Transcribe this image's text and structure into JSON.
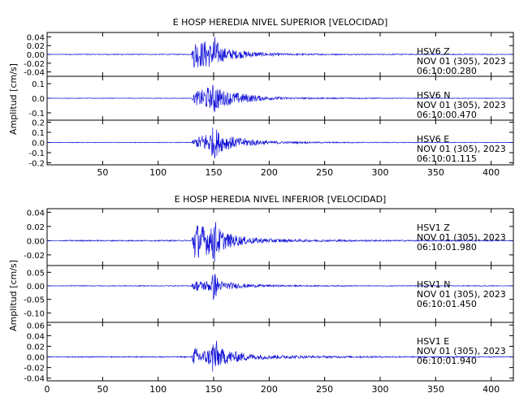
{
  "figure": {
    "background": "#ffffff",
    "trace_color": "#1414d8",
    "frame_color": "#000000"
  },
  "chart_data": [
    {
      "type": "line",
      "title": "E HOSP HEREDIA NIVEL SUPERIOR [VELOCIDAD]",
      "ylabel": "Amplitud [cm/s]",
      "xlim": [
        0,
        420
      ],
      "x_ticks": [
        50,
        100,
        150,
        200,
        250,
        300,
        350,
        400
      ],
      "x_tick_labels": [
        "50",
        "100",
        "150",
        "200",
        "250",
        "300",
        "350",
        "400"
      ],
      "grid": false,
      "panels": [
        {
          "station": "HSV6",
          "channel": "Z",
          "date": "NOV 01 (305), 2023",
          "time": "06:10:00.280",
          "ylim": [
            -0.05,
            0.05
          ],
          "y_ticks": [
            -0.04,
            -0.02,
            0.0,
            0.02,
            0.04
          ],
          "y_tick_labels": [
            "-0.04",
            "-0.02",
            "0.00",
            "0.02",
            "0.04"
          ],
          "series": [
            {
              "x": [
                0,
                20,
                40,
                60,
                80,
                100,
                120,
                130,
                133,
                135,
                140,
                145,
                148,
                150,
                155,
                160,
                170,
                180,
                190,
                200,
                220,
                250,
                300,
                350,
                400,
                420
              ],
              "y": [
                0,
                0.001,
                0.001,
                0.001,
                0.001,
                0.001,
                0.001,
                0.001,
                0.04,
                0.03,
                0.03,
                0.035,
                0.02,
                0.05,
                0.02,
                0.015,
                0.01,
                0.008,
                0.005,
                0.004,
                0.002,
                0.0015,
                0.001,
                0.001,
                0.001,
                0
              ]
            }
          ]
        },
        {
          "station": "HSV6",
          "channel": "N",
          "date": "NOV 01 (305), 2023",
          "time": "06:10:00.470",
          "ylim": [
            -0.15,
            0.15
          ],
          "y_ticks": [
            -0.1,
            0.0,
            0.1
          ],
          "y_tick_labels": [
            "-0.1",
            "0.0",
            "0.1"
          ],
          "series": [
            {
              "x": [
                0,
                20,
                40,
                60,
                80,
                100,
                120,
                130,
                133,
                135,
                140,
                145,
                148,
                150,
                155,
                160,
                170,
                180,
                190,
                200,
                220,
                250,
                300,
                350,
                400,
                420
              ],
              "y": [
                0,
                0.002,
                0.002,
                0.002,
                0.002,
                0.002,
                0.002,
                0.002,
                0.04,
                0.05,
                0.06,
                0.08,
                0.06,
                0.12,
                0.07,
                0.05,
                0.04,
                0.03,
                0.02,
                0.012,
                0.007,
                0.005,
                0.003,
                0.002,
                0.002,
                0
              ]
            }
          ]
        },
        {
          "station": "HSV6",
          "channel": "E",
          "date": "NOV 01 (305), 2023",
          "time": "06:10:01.115",
          "ylim": [
            -0.22,
            0.22
          ],
          "y_ticks": [
            -0.2,
            -0.1,
            0.0,
            0.1,
            0.2
          ],
          "y_tick_labels": [
            "-0.2",
            "-0.1",
            "0.0",
            "0.1",
            "0.2"
          ],
          "series": [
            {
              "x": [
                0,
                20,
                40,
                60,
                80,
                100,
                120,
                130,
                133,
                135,
                140,
                145,
                148,
                150,
                155,
                160,
                170,
                180,
                190,
                200,
                220,
                250,
                300,
                350,
                400,
                420
              ],
              "y": [
                0,
                0.003,
                0.003,
                0.003,
                0.003,
                0.003,
                0.003,
                0.003,
                0.04,
                0.05,
                0.08,
                0.1,
                0.12,
                0.18,
                0.1,
                0.08,
                0.05,
                0.04,
                0.025,
                0.015,
                0.01,
                0.006,
                0.004,
                0.003,
                0.003,
                0
              ]
            }
          ]
        }
      ]
    },
    {
      "type": "line",
      "title": "E HOSP HEREDIA NIVEL INFERIOR [VELOCIDAD]",
      "ylabel": "Amplitud [cm/s]",
      "xlim": [
        0,
        420
      ],
      "x_ticks": [
        0,
        50,
        100,
        150,
        200,
        250,
        300,
        350,
        400
      ],
      "x_tick_labels": [
        "0",
        "50",
        "100",
        "150",
        "200",
        "250",
        "300",
        "350",
        "400"
      ],
      "grid": false,
      "panels": [
        {
          "station": "HSV1",
          "channel": "Z",
          "date": "NOV 01 (305), 2023",
          "time": "06:10:01.980",
          "ylim": [
            -0.035,
            0.045
          ],
          "y_ticks": [
            -0.02,
            0.0,
            0.02,
            0.04
          ],
          "y_tick_labels": [
            "-0.02",
            "0.00",
            "0.02",
            "0.04"
          ],
          "series": [
            {
              "x": [
                0,
                20,
                40,
                60,
                80,
                100,
                120,
                130,
                133,
                135,
                140,
                145,
                148,
                150,
                155,
                160,
                170,
                180,
                190,
                200,
                220,
                250,
                300,
                350,
                400,
                420
              ],
              "y": [
                0,
                0.0008,
                0.0008,
                0.0008,
                0.0008,
                0.0008,
                0.0008,
                0.0008,
                0.03,
                0.025,
                0.022,
                0.02,
                0.018,
                0.035,
                0.018,
                0.012,
                0.008,
                0.005,
                0.004,
                0.003,
                0.002,
                0.0015,
                0.001,
                0.0008,
                0.0008,
                0
              ]
            }
          ]
        },
        {
          "station": "HSV1",
          "channel": "N",
          "date": "NOV 01 (305), 2023",
          "time": "06:10:01.450",
          "ylim": [
            -0.135,
            0.075
          ],
          "y_ticks": [
            -0.1,
            -0.05,
            0.0,
            0.05
          ],
          "y_tick_labels": [
            "-0.10",
            "-0.05",
            "0.00",
            "0.05"
          ],
          "series": [
            {
              "x": [
                0,
                20,
                40,
                60,
                80,
                100,
                120,
                130,
                133,
                135,
                140,
                145,
                148,
                150,
                155,
                160,
                170,
                180,
                190,
                200,
                220,
                250,
                300,
                350,
                400,
                420
              ],
              "y": [
                0,
                0.0015,
                0.0015,
                0.0015,
                0.0015,
                0.0015,
                0.0015,
                0.0015,
                0.02,
                0.02,
                0.018,
                0.02,
                0.025,
                0.06,
                0.02,
                0.015,
                0.01,
                0.007,
                0.005,
                0.004,
                0.003,
                0.002,
                0.0015,
                0.0015,
                0.0015,
                0
              ]
            }
          ]
        },
        {
          "station": "HSV1",
          "channel": "E",
          "date": "NOV 01 (305), 2023",
          "time": "06:10:01.940",
          "ylim": [
            -0.045,
            0.065
          ],
          "y_ticks": [
            -0.04,
            -0.02,
            0.0,
            0.02,
            0.04,
            0.06
          ],
          "y_tick_labels": [
            "-0.04",
            "-0.02",
            "0.00",
            "0.02",
            "0.04",
            "0.06"
          ],
          "series": [
            {
              "x": [
                0,
                20,
                40,
                60,
                80,
                100,
                120,
                130,
                133,
                135,
                140,
                145,
                148,
                150,
                155,
                160,
                170,
                180,
                190,
                200,
                220,
                250,
                300,
                350,
                400,
                420
              ],
              "y": [
                0,
                0.001,
                0.001,
                0.001,
                0.001,
                0.001,
                0.001,
                0.001,
                0.02,
                0.015,
                0.012,
                0.015,
                0.02,
                0.045,
                0.018,
                0.014,
                0.01,
                0.007,
                0.005,
                0.004,
                0.003,
                0.002,
                0.0015,
                0.001,
                0.001,
                0
              ]
            }
          ]
        }
      ]
    }
  ]
}
